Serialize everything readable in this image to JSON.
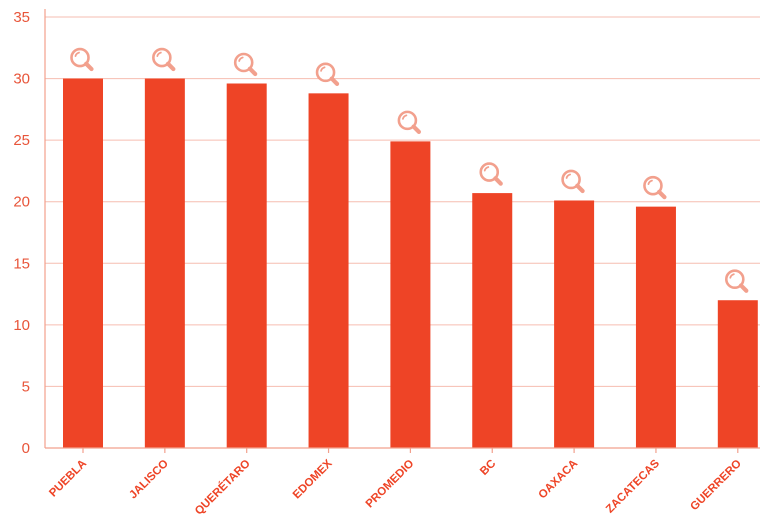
{
  "colors": {
    "bar": "#EE4426",
    "axis": "#F2A08D",
    "grid": "#F6BDB0",
    "tick_text": "#E8553A",
    "icon": "#F2A08D"
  },
  "icon_name": "magnifier-icon",
  "chart_data": {
    "type": "bar",
    "title": "",
    "xlabel": "",
    "ylabel": "",
    "categories": [
      "PUEBLA",
      "JALISCO",
      "QUERÉTARO",
      "EDOMEX",
      "PROMEDIO",
      "BC",
      "OAXACA",
      "ZACATECAS",
      "GUERRERO"
    ],
    "values": [
      30.0,
      30.0,
      29.6,
      28.8,
      24.9,
      20.7,
      20.1,
      19.6,
      12.0
    ],
    "ylim": [
      0,
      35
    ],
    "yticks": [
      "0",
      "5",
      "10",
      "15",
      "20",
      "25",
      "30",
      "35"
    ],
    "grid": true,
    "legend": "none"
  }
}
